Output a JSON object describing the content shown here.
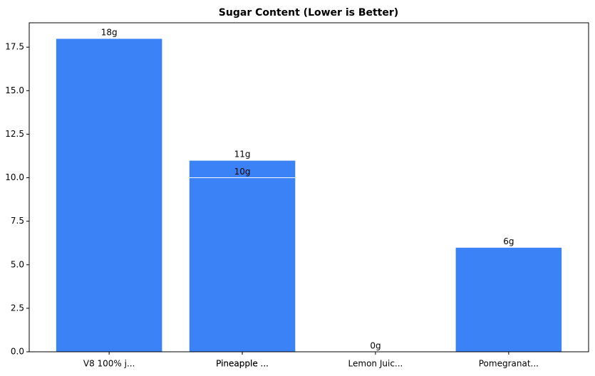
{
  "chart_data": {
    "type": "bar",
    "title": "Sugar Content (Lower is Better)",
    "categories": [
      "V8  100% j...",
      "Pineapple ...",
      "Pineapple ...",
      "Lemon Juic...",
      "Pomegranat..."
    ],
    "values": [
      18,
      11,
      10,
      0,
      6
    ],
    "value_labels": [
      "18g",
      "11g",
      "10g",
      "0g",
      "6g"
    ],
    "color": "#3b82f6",
    "ylim": [
      0,
      18.9
    ],
    "yticks": [
      {
        "value": 0,
        "label": "0.0"
      },
      {
        "value": 2.5,
        "label": "2.5"
      },
      {
        "value": 5,
        "label": "5.0"
      },
      {
        "value": 7.5,
        "label": "7.5"
      },
      {
        "value": 10,
        "label": "10.0"
      },
      {
        "value": 12.5,
        "label": "12.5"
      },
      {
        "value": 15,
        "label": "15.0"
      },
      {
        "value": 17.5,
        "label": "17.5"
      }
    ]
  }
}
